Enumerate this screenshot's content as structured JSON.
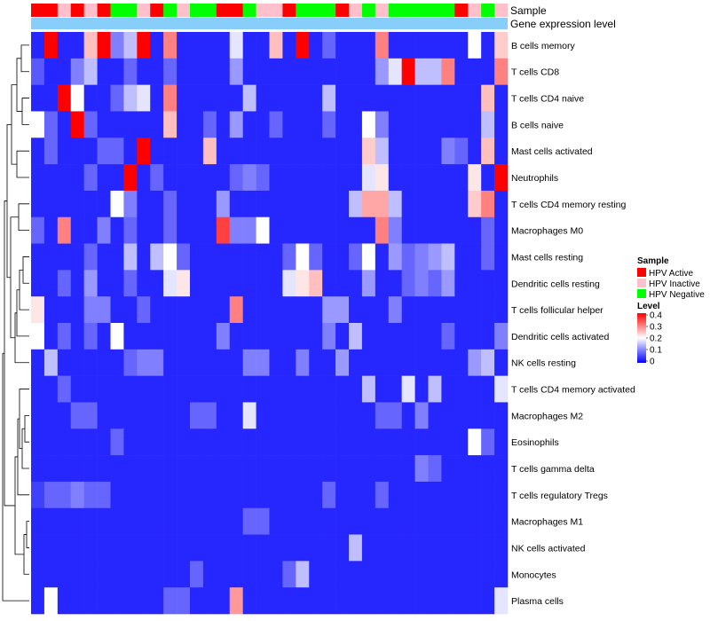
{
  "chart_data": {
    "type": "heatmap",
    "title": "",
    "annotation_labels": [
      "Sample",
      "Gene expression level"
    ],
    "row_labels": [
      "B cells memory",
      "T cells CD8",
      "T cells CD4 naive",
      "B cells naive",
      "Mast cells activated",
      "Neutrophils",
      "T cells CD4 memory resting",
      "Macrophages M0",
      "Mast cells resting",
      "Dendritic cells resting",
      "T cells follicular helper",
      "Dendritic cells activated",
      "NK cells resting",
      "T cells CD4 memory activated",
      "Macrophages M2",
      "Eosinophils",
      "T cells gamma delta",
      "T cells regulatory  Tregs",
      "Macrophages M1",
      "NK cells activated",
      "Monocytes",
      "Plasma cells"
    ],
    "sample_groups": [
      "A",
      "A",
      "I",
      "A",
      "I",
      "A",
      "N",
      "N",
      "I",
      "A",
      "N",
      "I",
      "N",
      "N",
      "A",
      "A",
      "N",
      "I",
      "I",
      "A",
      "N",
      "N",
      "N",
      "A",
      "I",
      "N",
      "I",
      "N",
      "N",
      "N",
      "N",
      "N",
      "A",
      "I",
      "N",
      "I"
    ],
    "values": [
      [
        0.03,
        0.4,
        0.03,
        0.03,
        0.25,
        0.4,
        0.1,
        0.15,
        0.4,
        0.03,
        0.3,
        0.03,
        0.03,
        0.03,
        0.03,
        0.18,
        0.03,
        0.03,
        0.25,
        0.03,
        0.4,
        0.03,
        0.08,
        0.03,
        0.03,
        0.03,
        0.3,
        0.03,
        0.03,
        0.03,
        0.03,
        0.03,
        0.03,
        0.2,
        0.03,
        0.24
      ],
      [
        0.07,
        0.03,
        0.03,
        0.1,
        0.15,
        0.03,
        0.03,
        0.08,
        0.03,
        0.03,
        0.08,
        0.03,
        0.03,
        0.03,
        0.03,
        0.12,
        0.03,
        0.03,
        0.03,
        0.03,
        0.03,
        0.03,
        0.03,
        0.03,
        0.03,
        0.03,
        0.12,
        0.18,
        0.4,
        0.15,
        0.15,
        0.3,
        0.03,
        0.03,
        0.03,
        0.3
      ],
      [
        0.03,
        0.03,
        0.4,
        0.2,
        0.03,
        0.03,
        0.08,
        0.15,
        0.18,
        0.03,
        0.3,
        0.03,
        0.03,
        0.03,
        0.03,
        0.03,
        0.15,
        0.03,
        0.03,
        0.03,
        0.03,
        0.03,
        0.15,
        0.03,
        0.03,
        0.03,
        0.03,
        0.03,
        0.03,
        0.03,
        0.03,
        0.03,
        0.03,
        0.03,
        0.25,
        0.03
      ],
      [
        0.2,
        0.08,
        0.03,
        0.4,
        0.08,
        0.03,
        0.03,
        0.03,
        0.03,
        0.03,
        0.25,
        0.03,
        0.03,
        0.08,
        0.03,
        0.12,
        0.03,
        0.03,
        0.08,
        0.03,
        0.03,
        0.03,
        0.08,
        0.03,
        0.03,
        0.2,
        0.1,
        0.03,
        0.03,
        0.03,
        0.03,
        0.03,
        0.03,
        0.03,
        0.15,
        0.03
      ],
      [
        0.03,
        0.08,
        0.03,
        0.03,
        0.03,
        0.08,
        0.08,
        0.03,
        0.4,
        0.03,
        0.03,
        0.03,
        0.03,
        0.25,
        0.03,
        0.03,
        0.03,
        0.03,
        0.03,
        0.03,
        0.03,
        0.03,
        0.03,
        0.03,
        0.03,
        0.24,
        0.15,
        0.03,
        0.03,
        0.03,
        0.03,
        0.1,
        0.08,
        0.03,
        0.25,
        0.03
      ],
      [
        0.03,
        0.03,
        0.03,
        0.03,
        0.08,
        0.03,
        0.03,
        0.4,
        0.03,
        0.08,
        0.03,
        0.03,
        0.03,
        0.03,
        0.03,
        0.08,
        0.1,
        0.08,
        0.03,
        0.03,
        0.03,
        0.03,
        0.03,
        0.03,
        0.03,
        0.18,
        0.22,
        0.03,
        0.03,
        0.03,
        0.03,
        0.03,
        0.03,
        0.22,
        0.03,
        0.4
      ],
      [
        0.03,
        0.03,
        0.03,
        0.03,
        0.03,
        0.03,
        0.2,
        0.1,
        0.03,
        0.03,
        0.08,
        0.03,
        0.03,
        0.03,
        0.12,
        0.03,
        0.03,
        0.03,
        0.03,
        0.03,
        0.03,
        0.03,
        0.03,
        0.03,
        0.15,
        0.27,
        0.27,
        0.15,
        0.03,
        0.03,
        0.03,
        0.03,
        0.03,
        0.24,
        0.3,
        0.03
      ],
      [
        0.08,
        0.03,
        0.3,
        0.03,
        0.03,
        0.1,
        0.03,
        0.08,
        0.03,
        0.03,
        0.08,
        0.03,
        0.03,
        0.03,
        0.35,
        0.1,
        0.1,
        0.2,
        0.03,
        0.03,
        0.03,
        0.03,
        0.03,
        0.03,
        0.03,
        0.03,
        0.3,
        0.1,
        0.03,
        0.03,
        0.03,
        0.03,
        0.03,
        0.03,
        0.08,
        0.03
      ],
      [
        0.03,
        0.03,
        0.03,
        0.03,
        0.08,
        0.03,
        0.03,
        0.15,
        0.03,
        0.15,
        0.2,
        0.08,
        0.03,
        0.03,
        0.03,
        0.03,
        0.03,
        0.03,
        0.03,
        0.08,
        0.2,
        0.08,
        0.03,
        0.03,
        0.08,
        0.2,
        0.03,
        0.12,
        0.08,
        0.1,
        0.12,
        0.15,
        0.03,
        0.03,
        0.08,
        0.03
      ],
      [
        0.03,
        0.03,
        0.08,
        0.03,
        0.12,
        0.03,
        0.03,
        0.08,
        0.03,
        0.03,
        0.18,
        0.22,
        0.03,
        0.03,
        0.03,
        0.03,
        0.03,
        0.03,
        0.03,
        0.18,
        0.22,
        0.25,
        0.03,
        0.03,
        0.03,
        0.12,
        0.03,
        0.03,
        0.08,
        0.1,
        0.08,
        0.12,
        0.03,
        0.03,
        0.03,
        0.03
      ],
      [
        0.22,
        0.03,
        0.03,
        0.03,
        0.1,
        0.1,
        0.03,
        0.03,
        0.08,
        0.03,
        0.03,
        0.03,
        0.03,
        0.03,
        0.03,
        0.3,
        0.03,
        0.03,
        0.03,
        0.03,
        0.03,
        0.03,
        0.12,
        0.12,
        0.03,
        0.03,
        0.03,
        0.1,
        0.03,
        0.03,
        0.03,
        0.03,
        0.03,
        0.03,
        0.03,
        0.03
      ],
      [
        0.2,
        0.03,
        0.08,
        0.03,
        0.08,
        0.03,
        0.2,
        0.03,
        0.03,
        0.03,
        0.03,
        0.03,
        0.03,
        0.03,
        0.1,
        0.03,
        0.03,
        0.03,
        0.03,
        0.03,
        0.03,
        0.03,
        0.1,
        0.03,
        0.15,
        0.03,
        0.03,
        0.03,
        0.03,
        0.03,
        0.03,
        0.08,
        0.03,
        0.03,
        0.03,
        0.1
      ],
      [
        0.03,
        0.15,
        0.03,
        0.03,
        0.03,
        0.03,
        0.03,
        0.08,
        0.1,
        0.1,
        0.03,
        0.03,
        0.03,
        0.03,
        0.03,
        0.03,
        0.1,
        0.1,
        0.03,
        0.03,
        0.1,
        0.03,
        0.03,
        0.12,
        0.03,
        0.03,
        0.03,
        0.03,
        0.03,
        0.03,
        0.03,
        0.03,
        0.03,
        0.12,
        0.15,
        0.03
      ],
      [
        0.03,
        0.03,
        0.08,
        0.03,
        0.03,
        0.03,
        0.03,
        0.03,
        0.03,
        0.03,
        0.03,
        0.03,
        0.03,
        0.03,
        0.03,
        0.03,
        0.03,
        0.03,
        0.03,
        0.03,
        0.03,
        0.03,
        0.03,
        0.03,
        0.03,
        0.15,
        0.03,
        0.03,
        0.18,
        0.03,
        0.15,
        0.03,
        0.03,
        0.03,
        0.03,
        0.18
      ],
      [
        0.03,
        0.03,
        0.03,
        0.08,
        0.08,
        0.03,
        0.03,
        0.03,
        0.03,
        0.03,
        0.03,
        0.03,
        0.08,
        0.08,
        0.03,
        0.03,
        0.18,
        0.03,
        0.03,
        0.03,
        0.03,
        0.03,
        0.03,
        0.03,
        0.03,
        0.03,
        0.08,
        0.08,
        0.03,
        0.1,
        0.03,
        0.03,
        0.03,
        0.03,
        0.03,
        0.03
      ],
      [
        0.03,
        0.03,
        0.03,
        0.03,
        0.03,
        0.03,
        0.08,
        0.03,
        0.03,
        0.03,
        0.03,
        0.03,
        0.03,
        0.03,
        0.03,
        0.03,
        0.03,
        0.03,
        0.03,
        0.03,
        0.03,
        0.03,
        0.03,
        0.03,
        0.03,
        0.03,
        0.03,
        0.03,
        0.03,
        0.03,
        0.03,
        0.03,
        0.03,
        0.2,
        0.08,
        0.03
      ],
      [
        0.03,
        0.03,
        0.03,
        0.03,
        0.03,
        0.03,
        0.03,
        0.03,
        0.03,
        0.03,
        0.03,
        0.03,
        0.03,
        0.03,
        0.03,
        0.03,
        0.03,
        0.03,
        0.03,
        0.03,
        0.03,
        0.03,
        0.03,
        0.03,
        0.03,
        0.03,
        0.03,
        0.03,
        0.03,
        0.1,
        0.08,
        0.03,
        0.03,
        0.03,
        0.03,
        0.03
      ],
      [
        0.05,
        0.08,
        0.08,
        0.1,
        0.08,
        0.08,
        0.03,
        0.03,
        0.03,
        0.03,
        0.03,
        0.03,
        0.03,
        0.03,
        0.03,
        0.03,
        0.03,
        0.03,
        0.03,
        0.03,
        0.03,
        0.03,
        0.08,
        0.03,
        0.03,
        0.03,
        0.08,
        0.03,
        0.03,
        0.03,
        0.03,
        0.03,
        0.03,
        0.03,
        0.03,
        0.03
      ],
      [
        0.03,
        0.03,
        0.03,
        0.03,
        0.03,
        0.03,
        0.03,
        0.03,
        0.03,
        0.03,
        0.03,
        0.03,
        0.03,
        0.03,
        0.03,
        0.03,
        0.08,
        0.08,
        0.03,
        0.03,
        0.03,
        0.03,
        0.03,
        0.03,
        0.03,
        0.03,
        0.03,
        0.03,
        0.03,
        0.03,
        0.03,
        0.03,
        0.03,
        0.03,
        0.03,
        0.03
      ],
      [
        0.03,
        0.03,
        0.03,
        0.03,
        0.03,
        0.03,
        0.03,
        0.03,
        0.03,
        0.03,
        0.03,
        0.03,
        0.03,
        0.03,
        0.03,
        0.03,
        0.03,
        0.03,
        0.03,
        0.03,
        0.03,
        0.03,
        0.03,
        0.03,
        0.15,
        0.03,
        0.03,
        0.03,
        0.03,
        0.03,
        0.03,
        0.03,
        0.03,
        0.03,
        0.03,
        0.03
      ],
      [
        0.03,
        0.03,
        0.03,
        0.03,
        0.03,
        0.03,
        0.03,
        0.03,
        0.03,
        0.03,
        0.03,
        0.03,
        0.08,
        0.03,
        0.03,
        0.03,
        0.03,
        0.03,
        0.03,
        0.08,
        0.15,
        0.03,
        0.03,
        0.03,
        0.03,
        0.03,
        0.03,
        0.03,
        0.03,
        0.03,
        0.03,
        0.03,
        0.03,
        0.03,
        0.03,
        0.03
      ],
      [
        0.03,
        0.2,
        0.03,
        0.03,
        0.03,
        0.03,
        0.03,
        0.03,
        0.03,
        0.03,
        0.08,
        0.08,
        0.03,
        0.03,
        0.03,
        0.28,
        0.03,
        0.03,
        0.03,
        0.03,
        0.03,
        0.03,
        0.03,
        0.03,
        0.03,
        0.03,
        0.03,
        0.03,
        0.03,
        0.03,
        0.03,
        0.03,
        0.03,
        0.03,
        0.03,
        0.18
      ]
    ],
    "color_scale": {
      "low": "#0000ff",
      "mid": "#ffffff",
      "high": "#ff0000",
      "range": [
        0,
        0.4
      ]
    },
    "legend": {
      "placement": "right",
      "sample_title": "Sample",
      "sample_items": [
        {
          "key": "A",
          "label": "HPV Active",
          "color": "#ff0000"
        },
        {
          "key": "I",
          "label": "HPV Inactive",
          "color": "#ffc0cb"
        },
        {
          "key": "N",
          "label": "HPV Negative",
          "color": "#00ff00"
        }
      ],
      "level_title": "Level",
      "level_ticks": [
        "0.4",
        "0.3",
        "0.2",
        "0.1",
        "0"
      ]
    },
    "expression_bar_color": "#87cefa"
  }
}
